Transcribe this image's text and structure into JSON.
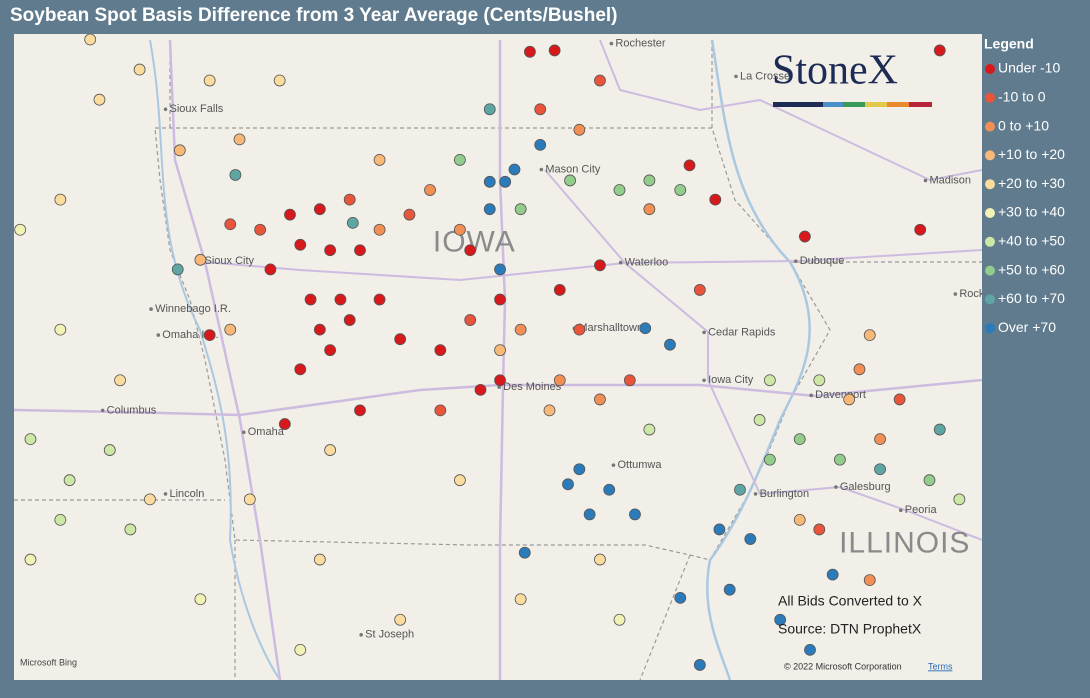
{
  "title": "Soybean Spot Basis Difference from 3 Year Average (Cents/Bushel)",
  "legend": {
    "title": "Legend",
    "items": [
      {
        "label": "Under -10",
        "color": "#d7191c"
      },
      {
        "label": "-10 to 0",
        "color": "#e8553a"
      },
      {
        "label": "0 to +10",
        "color": "#f28f55"
      },
      {
        "label": "+10 to +20",
        "color": "#f8b878"
      },
      {
        "label": "+20 to +30",
        "color": "#fcdc9e"
      },
      {
        "label": "+30 to +40",
        "color": "#f2f2b6"
      },
      {
        "label": "+40 to +50",
        "color": "#cce7a6"
      },
      {
        "label": "+50 to +60",
        "color": "#93cd8c"
      },
      {
        "label": "+60 to +70",
        "color": "#5ea6a3"
      },
      {
        "label": "Over +70",
        "color": "#2b7bba"
      }
    ]
  },
  "logo": "StoneX",
  "notes": [
    "All Bids Converted to X",
    "Source: DTN ProphetX"
  ],
  "attribution": {
    "provider": "Microsoft Bing",
    "copyright": "© 2022 Microsoft Corporation",
    "terms": "Terms"
  },
  "map": {
    "extent": {
      "lon": [
        -98.25,
        -88.85
      ],
      "lat": [
        39.44,
        44.16
      ]
    },
    "states": [
      {
        "name": "IOWA",
        "lon": -93.78,
        "lat": 42.63
      },
      {
        "name": "ILLINOIS",
        "lon": -89.6,
        "lat": 40.43
      }
    ],
    "cities": [
      {
        "name": "Rochester",
        "lon": -92.41,
        "lat": 44.09
      },
      {
        "name": "La Crosse",
        "lon": -91.2,
        "lat": 43.85
      },
      {
        "name": "Sioux Falls",
        "lon": -96.74,
        "lat": 43.61
      },
      {
        "name": "Mason City",
        "lon": -93.09,
        "lat": 43.17
      },
      {
        "name": "Sioux City",
        "lon": -96.4,
        "lat": 42.5
      },
      {
        "name": "Waterloo",
        "lon": -92.32,
        "lat": 42.49
      },
      {
        "name": "Dubuque",
        "lon": -90.62,
        "lat": 42.5
      },
      {
        "name": "Madison",
        "lon": -89.36,
        "lat": 43.09
      },
      {
        "name": "Rockford",
        "lon": -89.07,
        "lat": 42.26
      },
      {
        "name": "Cedar Rapids",
        "lon": -91.51,
        "lat": 41.98
      },
      {
        "name": "Marshalltown",
        "lon": -92.77,
        "lat": 42.01
      },
      {
        "name": "Iowa City",
        "lon": -91.51,
        "lat": 41.63
      },
      {
        "name": "Des Moines",
        "lon": -93.5,
        "lat": 41.58
      },
      {
        "name": "Davenport",
        "lon": -90.47,
        "lat": 41.52
      },
      {
        "name": "Winnebago I.R.",
        "lon": -96.88,
        "lat": 42.15
      },
      {
        "name": "Omaha I.R.",
        "lon": -96.81,
        "lat": 41.96
      },
      {
        "name": "Columbus",
        "lon": -97.35,
        "lat": 41.41
      },
      {
        "name": "Omaha",
        "lon": -95.98,
        "lat": 41.25
      },
      {
        "name": "Ottumwa",
        "lon": -92.39,
        "lat": 41.01
      },
      {
        "name": "Lincoln",
        "lon": -96.74,
        "lat": 40.8
      },
      {
        "name": "Burlington",
        "lon": -91.01,
        "lat": 40.8
      },
      {
        "name": "Galesburg",
        "lon": -90.23,
        "lat": 40.85
      },
      {
        "name": "Peoria",
        "lon": -89.6,
        "lat": 40.68
      },
      {
        "name": "St Joseph",
        "lon": -94.84,
        "lat": 39.77
      }
    ],
    "points": [
      {
        "lon": -95.57,
        "lat": 42.84,
        "bin": 0
      },
      {
        "lon": -95.28,
        "lat": 42.88,
        "bin": 0
      },
      {
        "lon": -95.47,
        "lat": 42.62,
        "bin": 0
      },
      {
        "lon": -95.76,
        "lat": 42.44,
        "bin": 0
      },
      {
        "lon": -95.18,
        "lat": 42.58,
        "bin": 0
      },
      {
        "lon": -94.89,
        "lat": 42.58,
        "bin": 0
      },
      {
        "lon": -95.08,
        "lat": 42.22,
        "bin": 0
      },
      {
        "lon": -95.37,
        "lat": 42.22,
        "bin": 0
      },
      {
        "lon": -94.99,
        "lat": 42.07,
        "bin": 0
      },
      {
        "lon": -94.7,
        "lat": 42.22,
        "bin": 0
      },
      {
        "lon": -95.28,
        "lat": 42.0,
        "bin": 0
      },
      {
        "lon": -95.18,
        "lat": 41.85,
        "bin": 0
      },
      {
        "lon": -95.47,
        "lat": 41.71,
        "bin": 0
      },
      {
        "lon": -94.5,
        "lat": 41.93,
        "bin": 0
      },
      {
        "lon": -94.11,
        "lat": 41.85,
        "bin": 0
      },
      {
        "lon": -93.72,
        "lat": 41.56,
        "bin": 0
      },
      {
        "lon": -93.53,
        "lat": 41.63,
        "bin": 0
      },
      {
        "lon": -96.35,
        "lat": 41.96,
        "bin": 0
      },
      {
        "lon": -95.62,
        "lat": 41.31,
        "bin": 0
      },
      {
        "lon": -94.89,
        "lat": 41.41,
        "bin": 0
      },
      {
        "lon": -93.82,
        "lat": 42.58,
        "bin": 0
      },
      {
        "lon": -93.53,
        "lat": 42.22,
        "bin": 0
      },
      {
        "lon": -92.95,
        "lat": 42.29,
        "bin": 0
      },
      {
        "lon": -92.56,
        "lat": 42.47,
        "bin": 0
      },
      {
        "lon": -91.69,
        "lat": 43.2,
        "bin": 0
      },
      {
        "lon": -91.44,
        "lat": 42.95,
        "bin": 0
      },
      {
        "lon": -90.57,
        "lat": 42.68,
        "bin": 0
      },
      {
        "lon": -93.24,
        "lat": 44.03,
        "bin": 0
      },
      {
        "lon": -93.0,
        "lat": 44.04,
        "bin": 0
      },
      {
        "lon": -89.26,
        "lat": 44.04,
        "bin": 0
      },
      {
        "lon": -89.45,
        "lat": 42.73,
        "bin": 0
      },
      {
        "lon": -96.15,
        "lat": 42.77,
        "bin": 1
      },
      {
        "lon": -95.86,
        "lat": 42.73,
        "bin": 1
      },
      {
        "lon": -94.99,
        "lat": 42.95,
        "bin": 1
      },
      {
        "lon": -94.41,
        "lat": 42.84,
        "bin": 1
      },
      {
        "lon": -93.14,
        "lat": 43.61,
        "bin": 1
      },
      {
        "lon": -92.56,
        "lat": 43.82,
        "bin": 1
      },
      {
        "lon": -93.82,
        "lat": 42.07,
        "bin": 1
      },
      {
        "lon": -92.76,
        "lat": 42.0,
        "bin": 1
      },
      {
        "lon": -92.27,
        "lat": 41.63,
        "bin": 1
      },
      {
        "lon": -94.11,
        "lat": 41.41,
        "bin": 1
      },
      {
        "lon": -91.59,
        "lat": 42.29,
        "bin": 1
      },
      {
        "lon": -89.65,
        "lat": 41.49,
        "bin": 1
      },
      {
        "lon": -90.43,
        "lat": 40.54,
        "bin": 1
      },
      {
        "lon": -94.7,
        "lat": 42.73,
        "bin": 2
      },
      {
        "lon": -94.21,
        "lat": 43.02,
        "bin": 2
      },
      {
        "lon": -93.92,
        "lat": 42.73,
        "bin": 2
      },
      {
        "lon": -92.76,
        "lat": 43.46,
        "bin": 2
      },
      {
        "lon": -93.33,
        "lat": 42.0,
        "bin": 2
      },
      {
        "lon": -92.56,
        "lat": 41.49,
        "bin": 2
      },
      {
        "lon": -92.95,
        "lat": 41.63,
        "bin": 2
      },
      {
        "lon": -92.08,
        "lat": 42.88,
        "bin": 2
      },
      {
        "lon": -90.04,
        "lat": 41.71,
        "bin": 2
      },
      {
        "lon": -89.84,
        "lat": 41.2,
        "bin": 2
      },
      {
        "lon": -89.94,
        "lat": 40.17,
        "bin": 2
      },
      {
        "lon": -96.44,
        "lat": 42.51,
        "bin": 3
      },
      {
        "lon": -96.64,
        "lat": 43.31,
        "bin": 3
      },
      {
        "lon": -96.06,
        "lat": 43.39,
        "bin": 3
      },
      {
        "lon": -94.7,
        "lat": 43.24,
        "bin": 3
      },
      {
        "lon": -93.53,
        "lat": 41.85,
        "bin": 3
      },
      {
        "lon": -93.05,
        "lat": 41.41,
        "bin": 3
      },
      {
        "lon": -96.15,
        "lat": 42.0,
        "bin": 3
      },
      {
        "lon": -89.94,
        "lat": 41.96,
        "bin": 3
      },
      {
        "lon": -90.14,
        "lat": 41.49,
        "bin": 3
      },
      {
        "lon": -90.62,
        "lat": 40.61,
        "bin": 3
      },
      {
        "lon": -97.51,
        "lat": 44.12,
        "bin": 4
      },
      {
        "lon": -97.03,
        "lat": 43.9,
        "bin": 4
      },
      {
        "lon": -96.35,
        "lat": 43.82,
        "bin": 4
      },
      {
        "lon": -95.67,
        "lat": 43.82,
        "bin": 4
      },
      {
        "lon": -97.42,
        "lat": 43.68,
        "bin": 4
      },
      {
        "lon": -97.8,
        "lat": 42.95,
        "bin": 4
      },
      {
        "lon": -95.96,
        "lat": 40.76,
        "bin": 4
      },
      {
        "lon": -95.28,
        "lat": 40.32,
        "bin": 4
      },
      {
        "lon": -94.5,
        "lat": 39.88,
        "bin": 4
      },
      {
        "lon": -93.33,
        "lat": 40.03,
        "bin": 4
      },
      {
        "lon": -93.92,
        "lat": 40.9,
        "bin": 4
      },
      {
        "lon": -92.56,
        "lat": 40.32,
        "bin": 4
      },
      {
        "lon": -97.22,
        "lat": 41.63,
        "bin": 4
      },
      {
        "lon": -96.93,
        "lat": 40.76,
        "bin": 4
      },
      {
        "lon": -95.18,
        "lat": 41.12,
        "bin": 4
      },
      {
        "lon": -98.19,
        "lat": 42.73,
        "bin": 5
      },
      {
        "lon": -97.8,
        "lat": 42.0,
        "bin": 5
      },
      {
        "lon": -96.44,
        "lat": 40.03,
        "bin": 5
      },
      {
        "lon": -95.47,
        "lat": 39.66,
        "bin": 5
      },
      {
        "lon": -98.09,
        "lat": 40.32,
        "bin": 5
      },
      {
        "lon": -92.37,
        "lat": 39.88,
        "bin": 5
      },
      {
        "lon": -98.09,
        "lat": 41.2,
        "bin": 6
      },
      {
        "lon": -97.71,
        "lat": 40.9,
        "bin": 6
      },
      {
        "lon": -97.32,
        "lat": 41.12,
        "bin": 6
      },
      {
        "lon": -97.8,
        "lat": 40.61,
        "bin": 6
      },
      {
        "lon": -97.12,
        "lat": 40.54,
        "bin": 6
      },
      {
        "lon": -90.91,
        "lat": 41.63,
        "bin": 6
      },
      {
        "lon": -91.01,
        "lat": 41.34,
        "bin": 6
      },
      {
        "lon": -90.43,
        "lat": 41.63,
        "bin": 6
      },
      {
        "lon": -89.07,
        "lat": 40.76,
        "bin": 6
      },
      {
        "lon": -92.08,
        "lat": 41.27,
        "bin": 6
      },
      {
        "lon": -93.92,
        "lat": 43.24,
        "bin": 7
      },
      {
        "lon": -92.85,
        "lat": 43.09,
        "bin": 7
      },
      {
        "lon": -92.37,
        "lat": 43.02,
        "bin": 7
      },
      {
        "lon": -92.08,
        "lat": 43.09,
        "bin": 7
      },
      {
        "lon": -93.33,
        "lat": 42.88,
        "bin": 7
      },
      {
        "lon": -91.78,
        "lat": 43.02,
        "bin": 7
      },
      {
        "lon": -90.62,
        "lat": 41.2,
        "bin": 7
      },
      {
        "lon": -90.23,
        "lat": 41.05,
        "bin": 7
      },
      {
        "lon": -89.36,
        "lat": 40.9,
        "bin": 7
      },
      {
        "lon": -90.91,
        "lat": 41.05,
        "bin": 7
      },
      {
        "lon": -96.66,
        "lat": 42.44,
        "bin": 8
      },
      {
        "lon": -96.1,
        "lat": 43.13,
        "bin": 8
      },
      {
        "lon": -94.96,
        "lat": 42.78,
        "bin": 8
      },
      {
        "lon": -93.63,
        "lat": 43.61,
        "bin": 8
      },
      {
        "lon": -89.84,
        "lat": 40.98,
        "bin": 8
      },
      {
        "lon": -89.26,
        "lat": 41.27,
        "bin": 8
      },
      {
        "lon": -91.2,
        "lat": 40.83,
        "bin": 8
      },
      {
        "lon": -93.63,
        "lat": 43.08,
        "bin": 9
      },
      {
        "lon": -93.48,
        "lat": 43.08,
        "bin": 9
      },
      {
        "lon": -93.39,
        "lat": 43.17,
        "bin": 9
      },
      {
        "lon": -93.14,
        "lat": 43.35,
        "bin": 9
      },
      {
        "lon": -93.63,
        "lat": 42.88,
        "bin": 9
      },
      {
        "lon": -93.53,
        "lat": 42.44,
        "bin": 9
      },
      {
        "lon": -92.12,
        "lat": 42.01,
        "bin": 9
      },
      {
        "lon": -91.88,
        "lat": 41.89,
        "bin": 9
      },
      {
        "lon": -92.76,
        "lat": 40.98,
        "bin": 9
      },
      {
        "lon": -92.47,
        "lat": 40.83,
        "bin": 9
      },
      {
        "lon": -92.87,
        "lat": 40.87,
        "bin": 9
      },
      {
        "lon": -92.66,
        "lat": 40.65,
        "bin": 9
      },
      {
        "lon": -92.22,
        "lat": 40.65,
        "bin": 9
      },
      {
        "lon": -93.29,
        "lat": 40.37,
        "bin": 9
      },
      {
        "lon": -91.4,
        "lat": 40.54,
        "bin": 9
      },
      {
        "lon": -91.1,
        "lat": 40.47,
        "bin": 9
      },
      {
        "lon": -91.3,
        "lat": 40.1,
        "bin": 9
      },
      {
        "lon": -90.81,
        "lat": 39.88,
        "bin": 9
      },
      {
        "lon": -90.3,
        "lat": 40.21,
        "bin": 9
      },
      {
        "lon": -90.52,
        "lat": 39.66,
        "bin": 9
      },
      {
        "lon": -91.59,
        "lat": 39.55,
        "bin": 9
      },
      {
        "lon": -91.78,
        "lat": 40.04,
        "bin": 9
      }
    ]
  }
}
